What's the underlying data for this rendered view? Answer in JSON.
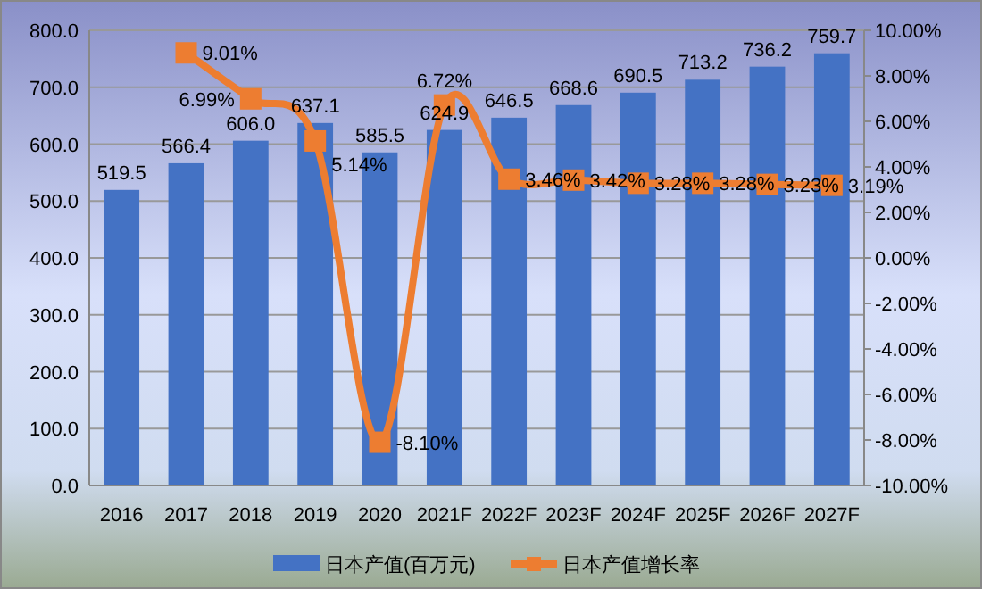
{
  "chart_data": {
    "type": "bar",
    "categories": [
      "2016",
      "2017",
      "2018",
      "2019",
      "2020",
      "2021F",
      "2022F",
      "2023F",
      "2024F",
      "2025F",
      "2026F",
      "2027F"
    ],
    "series": [
      {
        "name": "日本产值(百万元)",
        "color": "#4472c4",
        "values": [
          519.5,
          566.4,
          606.0,
          637.1,
          585.5,
          624.9,
          646.5,
          668.6,
          690.5,
          713.2,
          736.2,
          759.7
        ],
        "value_labels": [
          "519.5",
          "566.4",
          "606.0",
          "637.1",
          "585.5",
          "624.9",
          "646.5",
          "668.6",
          "690.5",
          "713.2",
          "736.2",
          "759.7"
        ]
      },
      {
        "name": "日本产值增长率",
        "type": "line",
        "axis": "y2",
        "color": "#ed7d31",
        "marker": "square",
        "values": [
          null,
          9.01,
          6.99,
          5.14,
          -8.1,
          6.72,
          3.46,
          3.42,
          3.28,
          3.28,
          3.23,
          3.19
        ],
        "value_labels": [
          null,
          "9.01%",
          "6.99%",
          "5.14%",
          "-8.10%",
          "6.72%",
          "3.46%",
          "3.42%",
          "3.28%",
          "3.28%",
          "3.23%",
          "3.19%"
        ]
      }
    ],
    "ylim": [
      0,
      800
    ],
    "yticks": [
      {
        "value": 0,
        "label": "0.0"
      },
      {
        "value": 100,
        "label": "100.0"
      },
      {
        "value": 200,
        "label": "200.0"
      },
      {
        "value": 300,
        "label": "300.0"
      },
      {
        "value": 400,
        "label": "400.0"
      },
      {
        "value": 500,
        "label": "500.0"
      },
      {
        "value": 600,
        "label": "600.0"
      },
      {
        "value": 700,
        "label": "700.0"
      },
      {
        "value": 800,
        "label": "800.0"
      }
    ],
    "y2lim": [
      -10,
      10
    ],
    "y2ticks": [
      {
        "value": -10,
        "label": "-10.00%"
      },
      {
        "value": -8,
        "label": "-8.00%"
      },
      {
        "value": -6,
        "label": "-6.00%"
      },
      {
        "value": -4,
        "label": "-4.00%"
      },
      {
        "value": -2,
        "label": "-2.00%"
      },
      {
        "value": 0,
        "label": "0.00%"
      },
      {
        "value": 2,
        "label": "2.00%"
      },
      {
        "value": 4,
        "label": "4.00%"
      },
      {
        "value": 6,
        "label": "6.00%"
      },
      {
        "value": 8,
        "label": "8.00%"
      },
      {
        "value": 10,
        "label": "10.00%"
      }
    ],
    "grid": "y",
    "legend": "bottom"
  }
}
